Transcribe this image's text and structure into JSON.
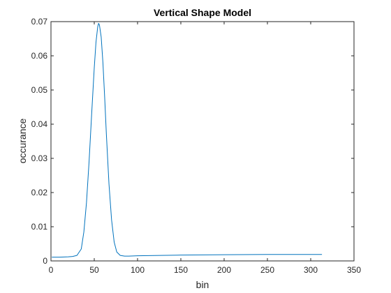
{
  "chart_data": {
    "type": "line",
    "title": "Vertical Shape Model",
    "xlabel": "bin",
    "ylabel": "occurance",
    "xlim": [
      0,
      350
    ],
    "ylim": [
      0,
      0.07
    ],
    "xticks": [
      "0",
      "50",
      "100",
      "150",
      "200",
      "250",
      "300",
      "350"
    ],
    "yticks": [
      "0",
      "0.01",
      "0.02",
      "0.03",
      "0.04",
      "0.05",
      "0.06",
      "0.07"
    ],
    "grid": false,
    "box": true,
    "line_color": "#0072BD",
    "series": [
      {
        "x": [
          1,
          10,
          20,
          25,
          30,
          35,
          38,
          41,
          44,
          47,
          50,
          52,
          54,
          55,
          56,
          58,
          60,
          62,
          64,
          67,
          70,
          73,
          76,
          80,
          85,
          90,
          100,
          150,
          200,
          250,
          313
        ],
        "values": [
          0.0011,
          0.0011,
          0.0012,
          0.0013,
          0.0016,
          0.0035,
          0.0085,
          0.017,
          0.029,
          0.043,
          0.0565,
          0.064,
          0.0685,
          0.0695,
          0.069,
          0.0655,
          0.058,
          0.048,
          0.037,
          0.0225,
          0.012,
          0.0055,
          0.0026,
          0.0016,
          0.0014,
          0.0014,
          0.0015,
          0.0017,
          0.0018,
          0.0019,
          0.0019
        ]
      }
    ]
  }
}
